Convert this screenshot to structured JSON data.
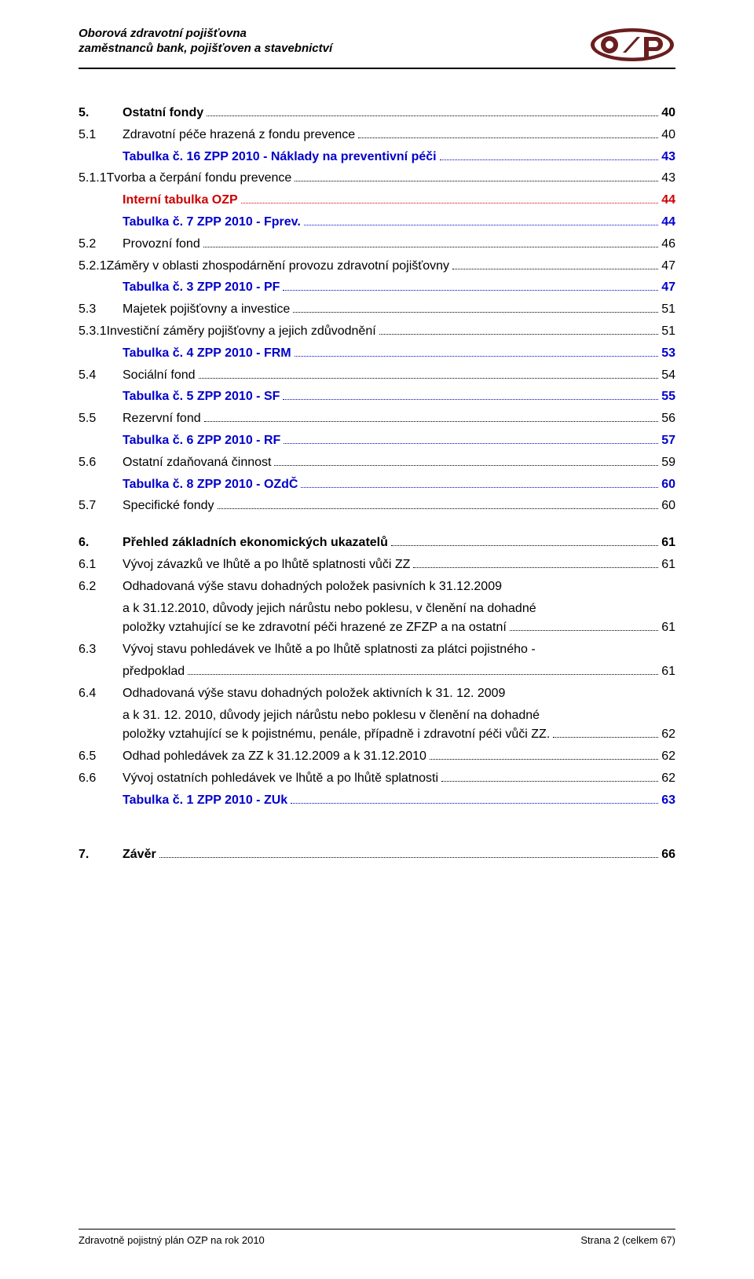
{
  "header": {
    "line1": "Oborová zdravotní pojišťovna",
    "line2": "zaměstnanců bank, pojišťoven a stavebnictví",
    "logo_text": "ozp",
    "logo_colors": {
      "dark": "#6a1e1e",
      "light": "#ffffff"
    }
  },
  "toc": [
    {
      "type": "section",
      "num": "5.",
      "label": "Ostatní fondy",
      "page": "40",
      "bold": true
    },
    {
      "type": "sub",
      "num": "5.1",
      "label": "Zdravotní péče hrazená z fondu prevence",
      "page": "40"
    },
    {
      "type": "link",
      "label": "Tabulka č. 16 ZPP 2010 - Náklady na preventivní péči",
      "page": "43",
      "color": "blue"
    },
    {
      "type": "sub",
      "num": "5.1.1",
      "label": "Tvorba a čerpání fondu prevence",
      "page": "43",
      "tight": true
    },
    {
      "type": "link",
      "label": "Interní tabulka OZP",
      "page": "44",
      "color": "red"
    },
    {
      "type": "link",
      "label": "Tabulka č. 7 ZPP 2010 - Fprev.",
      "page": "44",
      "color": "blue"
    },
    {
      "type": "sub",
      "num": "5.2",
      "label": "Provozní fond",
      "page": "46"
    },
    {
      "type": "sub",
      "num": "5.2.1",
      "label": "Záměry v oblasti zhospodárnění provozu zdravotní pojišťovny",
      "page": "47",
      "tight": true
    },
    {
      "type": "link",
      "label": "Tabulka č. 3 ZPP 2010 - PF",
      "page": "47",
      "color": "blue"
    },
    {
      "type": "sub",
      "num": "5.3",
      "label": "Majetek pojišťovny a investice",
      "page": "51"
    },
    {
      "type": "sub",
      "num": "5.3.1",
      "label": "Investiční záměry pojišťovny a jejich zdůvodnění",
      "page": "51",
      "tight": true
    },
    {
      "type": "link",
      "label": "Tabulka č. 4 ZPP 2010 - FRM",
      "page": "53",
      "color": "blue"
    },
    {
      "type": "sub",
      "num": "5.4",
      "label": "Sociální fond",
      "page": "54"
    },
    {
      "type": "link",
      "label": "Tabulka č. 5 ZPP 2010 - SF",
      "page": "55",
      "color": "blue"
    },
    {
      "type": "sub",
      "num": "5.5",
      "label": "Rezervní fond",
      "page": "56"
    },
    {
      "type": "link",
      "label": "Tabulka č. 6 ZPP 2010 - RF",
      "page": "57",
      "color": "blue"
    },
    {
      "type": "sub",
      "num": "5.6",
      "label": "Ostatní zdaňovaná činnost",
      "page": "59"
    },
    {
      "type": "link",
      "label": "Tabulka č. 8 ZPP 2010 - OZdČ",
      "page": "60",
      "color": "blue"
    },
    {
      "type": "sub",
      "num": "5.7",
      "label": "Specifické fondy",
      "page": "60"
    },
    {
      "type": "section",
      "num": "6.",
      "label": "Přehled základních ekonomických ukazatelů",
      "page": "61",
      "bold": true,
      "spaced": true
    },
    {
      "type": "sub",
      "num": "6.1",
      "label": "Vývoj závazků ve lhůtě a po lhůtě splatnosti vůči ZZ",
      "page": "61"
    },
    {
      "type": "multi",
      "num": "6.2",
      "lines": [
        "Odhadovaná výše stavu dohadných položek pasivních k 31.12.2009",
        "a k 31.12.2010, důvody jejich nárůstu nebo poklesu, v členění na dohadné",
        "položky vztahující se ke zdravotní péči hrazené ze ZFZP a na ostatní"
      ],
      "page": "61"
    },
    {
      "type": "multi",
      "num": "6.3",
      "lines": [
        "Vývoj stavu pohledávek ve lhůtě a po lhůtě splatnosti za plátci pojistného -",
        "předpoklad"
      ],
      "page": "61"
    },
    {
      "type": "multi",
      "num": "6.4",
      "lines": [
        "Odhadovaná výše stavu dohadných položek aktivních k 31. 12. 2009",
        "a k 31. 12. 2010, důvody jejich nárůstu nebo poklesu v členění na dohadné",
        "položky vztahující se k pojistnému, penále, případně i zdravotní péči vůči ZZ."
      ],
      "page": "62"
    },
    {
      "type": "sub",
      "num": "6.5",
      "label": "Odhad pohledávek za ZZ k 31.12.2009 a k 31.12.2010",
      "page": "62"
    },
    {
      "type": "sub",
      "num": "6.6",
      "label": "Vývoj ostatních pohledávek ve lhůtě a po lhůtě splatnosti",
      "page": "62"
    },
    {
      "type": "link",
      "label": "Tabulka č. 1 ZPP 2010 - ZUk",
      "page": "63",
      "color": "blue"
    },
    {
      "type": "section",
      "num": "7.",
      "label": "Závěr",
      "page": "66",
      "bold": true,
      "spaced": true,
      "extra_spaced": true
    }
  ],
  "footer": {
    "left": "Zdravotně pojistný plán OZP na rok 2010",
    "right": "Strana 2 (celkem 67)"
  }
}
